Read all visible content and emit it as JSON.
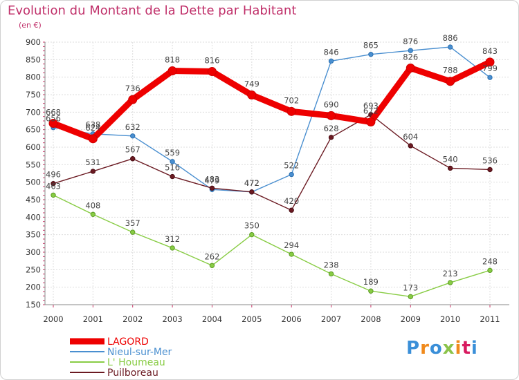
{
  "chart_data": {
    "type": "line",
    "title": "Evolution du Montant de la Dette par Habitant",
    "subtitle": "(en €)",
    "categories": [
      "2000",
      "2001",
      "2002",
      "2003",
      "2004",
      "2005",
      "2006",
      "2007",
      "2008",
      "2009",
      "2010",
      "2011"
    ],
    "y_ticks": [
      150,
      200,
      250,
      300,
      350,
      400,
      450,
      500,
      550,
      600,
      650,
      700,
      750,
      800,
      850,
      900
    ],
    "ylim": [
      150,
      900
    ],
    "grid": true,
    "legend_position": "bottom-left",
    "series": [
      {
        "name": "Nieul-sur-Mer",
        "color": "#4a8fd0",
        "values": [
          656,
          638,
          632,
          559,
          479,
          472,
          522,
          846,
          865,
          876,
          886,
          799
        ]
      },
      {
        "name": "L' Houmeau",
        "color": "#88cc44",
        "values": [
          463,
          408,
          357,
          312,
          262,
          350,
          294,
          238,
          189,
          173,
          213,
          248
        ]
      },
      {
        "name": "Puilboreau",
        "color": "#6b1a22",
        "values": [
          496,
          531,
          567,
          516,
          483,
          472,
          420,
          628,
          693,
          604,
          540,
          536
        ]
      },
      {
        "name": "LAGORD",
        "color": "#ee0000",
        "values": [
          668,
          624,
          736,
          818,
          816,
          749,
          702,
          690,
          672,
          826,
          788,
          843
        ]
      }
    ],
    "legend_order": [
      "LAGORD",
      "Nieul-sur-Mer",
      "L' Houmeau",
      "Puilboreau"
    ]
  },
  "logo": {
    "text": "Proxiti",
    "colors": [
      "#3a8fd8",
      "#f08a1c",
      "#3a8fd8",
      "#8bc34a",
      "#f08a1c",
      "#d81b60",
      "#3a8fd8"
    ]
  }
}
